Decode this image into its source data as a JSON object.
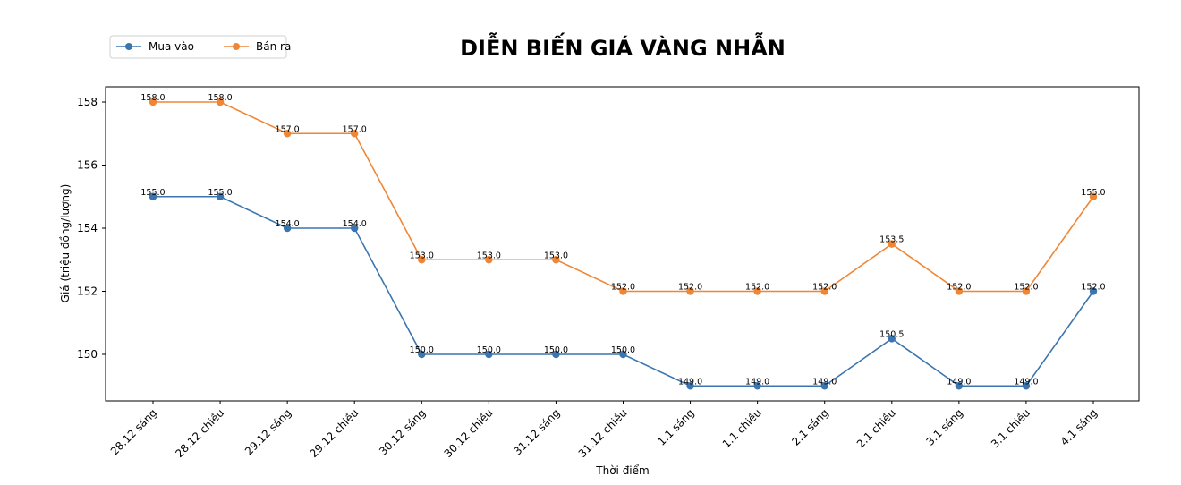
{
  "chart_data": {
    "type": "line",
    "title": "DIỄN BIẾN GIÁ VÀNG NHẪN",
    "xlabel": "Thời điểm",
    "ylabel": "Giá (triệu đồng/lượng)",
    "ylim": [
      148.55,
      158.45
    ],
    "yticks": [
      150,
      152,
      154,
      156,
      158
    ],
    "grid": false,
    "legend_position": "upper left (outside, above plot)",
    "categories": [
      "28.12 sáng",
      "28.12 chiều",
      "29.12 sáng",
      "29.12 chiều",
      "30.12 sáng",
      "30.12 chiều",
      "31.12 sáng",
      "31.12 chiều",
      "1.1 sáng",
      "1.1 chiều",
      "2.1 sáng",
      "2.1 chiều",
      "3.1 sáng",
      "3.1 chiều",
      "4.1 sáng"
    ],
    "series": [
      {
        "name": "Mua vào",
        "color": "#3b75af",
        "values": [
          155.0,
          155.0,
          154.0,
          154.0,
          150.0,
          150.0,
          150.0,
          150.0,
          149.0,
          149.0,
          149.0,
          150.5,
          149.0,
          149.0,
          152.0
        ]
      },
      {
        "name": "Bán ra",
        "color": "#ef8636",
        "values": [
          158.0,
          158.0,
          157.0,
          157.0,
          153.0,
          153.0,
          153.0,
          152.0,
          152.0,
          152.0,
          152.0,
          153.5,
          152.0,
          152.0,
          155.0
        ]
      }
    ]
  }
}
